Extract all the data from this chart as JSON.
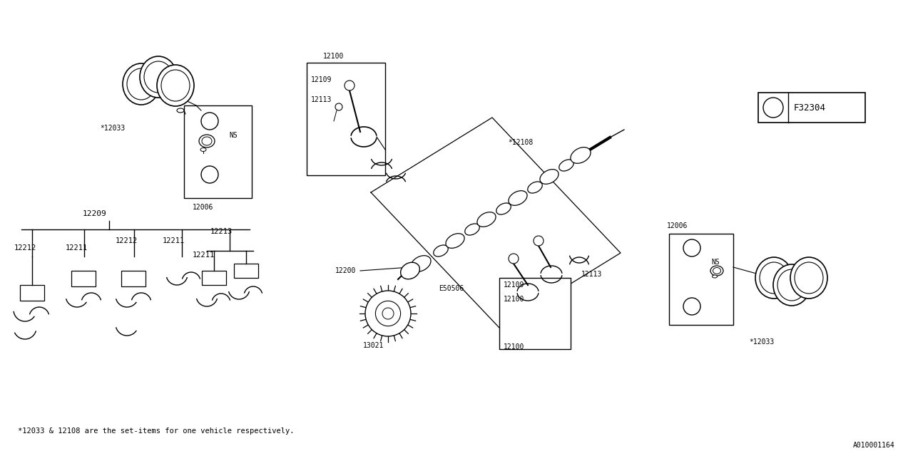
{
  "bg_color": "#ffffff",
  "line_color": "#000000",
  "text_color": "#000000",
  "fig_width": 12.8,
  "fig_height": 6.4,
  "footer_text": "*12033 & 12108 are the set-items for one vehicle respectively.",
  "watermark": "A010001164",
  "part_label": "F32304"
}
